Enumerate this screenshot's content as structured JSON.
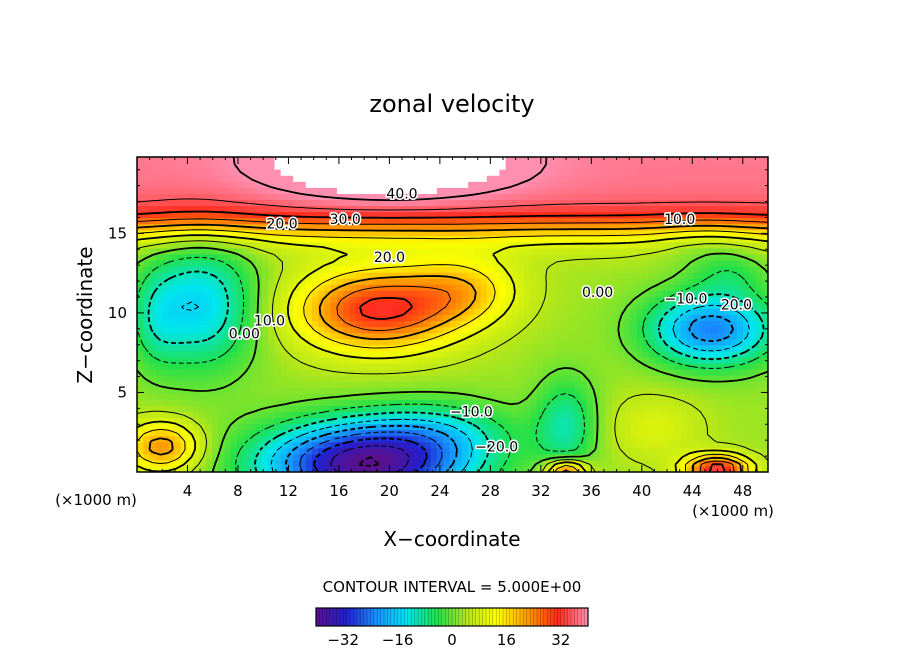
{
  "chart_data": {
    "type": "heatmap",
    "title": "zonal velocity",
    "xlabel": "X−coordinate",
    "ylabel": "Z−coordinate",
    "x_unit_label_left": "(×1000 m)",
    "x_unit_label_right": "(×1000 m)",
    "xlim": [
      0,
      50
    ],
    "ylim": [
      0,
      19.8
    ],
    "x_ticks": [
      4,
      8,
      12,
      16,
      20,
      24,
      28,
      32,
      36,
      40,
      44,
      48
    ],
    "y_ticks": [
      5,
      10,
      15
    ],
    "contour_interval_text": "CONTOUR INTERVAL = 5.000E+00",
    "colorbar": {
      "min": -40,
      "max": 40,
      "ticks": [
        -32,
        -16,
        0,
        16,
        32
      ],
      "colors": [
        "#5b0f8c",
        "#2020d0",
        "#1890ff",
        "#00e6f0",
        "#20e04a",
        "#b4e61a",
        "#ffff00",
        "#ff9a00",
        "#ff2a1a",
        "#ff8fb0"
      ]
    },
    "contour_labels": [
      "40.0",
      "30.0",
      "20.0",
      "20.0",
      "10.0",
      "10.0",
      "0.00",
      "0.00",
      "−10.0",
      "20.0",
      "−10.0",
      "−20.0"
    ],
    "features": [
      {
        "x": 18,
        "z": 10,
        "value": 35
      },
      {
        "x": 25,
        "z": 11.5,
        "value": 28
      },
      {
        "x": 20,
        "z": 18.5,
        "value": 42
      },
      {
        "x": 6,
        "z": 10.5,
        "value": -12
      },
      {
        "x": 46,
        "z": 9,
        "value": -18
      },
      {
        "x": 18,
        "z": 1,
        "value": -35
      },
      {
        "x": 34,
        "z": 2,
        "value": -8
      },
      {
        "x": 2,
        "z": 1.5,
        "value": 20
      },
      {
        "x": 46,
        "z": 0.5,
        "value": 30
      },
      {
        "x": 34,
        "z": 0.4,
        "value": 25
      }
    ]
  }
}
